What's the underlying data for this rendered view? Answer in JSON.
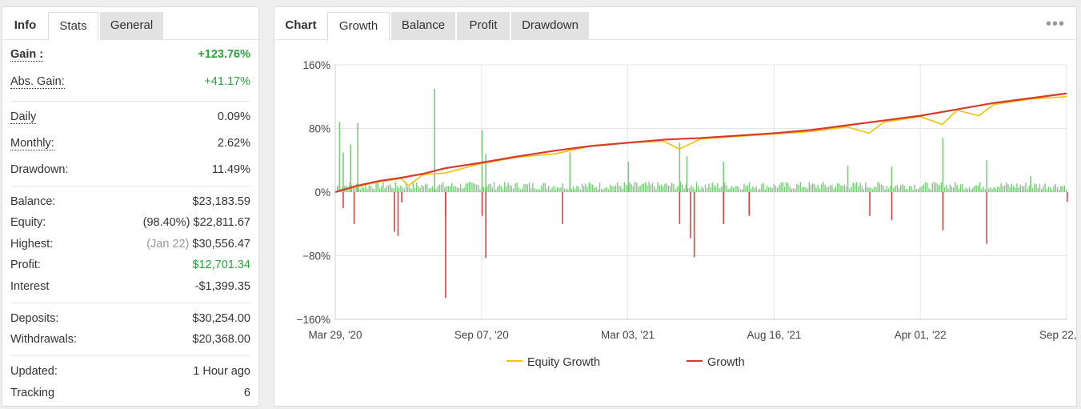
{
  "left": {
    "tabs": [
      {
        "label": "Info"
      },
      {
        "label": "Stats"
      },
      {
        "label": "General"
      }
    ],
    "stats": {
      "gain": {
        "label": "Gain :",
        "value": "+123.76%"
      },
      "abs_gain": {
        "label": "Abs. Gain:",
        "value": "+41.17%"
      },
      "daily": {
        "label": "Daily",
        "value": "0.09%"
      },
      "monthly": {
        "label": "Monthly:",
        "value": "2.62%"
      },
      "drawdown": {
        "label": "Drawdown:",
        "value": "11.49%"
      },
      "balance": {
        "label": "Balance:",
        "value": "$23,183.59"
      },
      "equity": {
        "label": "Equity:",
        "prefix": "(98.40%)",
        "value": "$22,811.67"
      },
      "highest": {
        "label": "Highest:",
        "prefix": "(Jan 22)",
        "value": "$30,556.47"
      },
      "profit": {
        "label": "Profit:",
        "value": "$12,701.34"
      },
      "interest": {
        "label": "Interest",
        "value": "-$1,399.35"
      },
      "deposits": {
        "label": "Deposits:",
        "value": "$30,254.00"
      },
      "withdrawals": {
        "label": "Withdrawals:",
        "value": "$20,368.00"
      },
      "updated": {
        "label": "Updated:",
        "value": "1 Hour ago"
      },
      "tracking": {
        "label": "Tracking",
        "value": "6"
      }
    }
  },
  "right": {
    "title": "Chart",
    "tabs": [
      {
        "label": "Growth"
      },
      {
        "label": "Balance"
      },
      {
        "label": "Profit"
      },
      {
        "label": "Drawdown"
      }
    ],
    "menu_icon": "more-dots-icon"
  },
  "colors": {
    "green": "#2aa33b",
    "equity_line": "#f2c200",
    "growth_line": "#d93a2b",
    "bar_positive": "#7ccb7c",
    "bar_negative": "#d94444"
  },
  "chart_data": {
    "type": "line",
    "x_tick_labels": [
      "Mar 29, '20",
      "Sep 07, '20",
      "Mar 03, '21",
      "Aug 16, '21",
      "Apr 01, '22",
      "Sep 22, '22"
    ],
    "y_tick_labels": [
      "160%",
      "80%",
      "0%",
      "−80%",
      "−160%"
    ],
    "ylim": [
      -160,
      160
    ],
    "grid": true,
    "legend": [
      "Equity Growth",
      "Growth"
    ],
    "legend_placement": "bottom",
    "series": [
      {
        "name": "Growth",
        "x": [
          0,
          0.03,
          0.06,
          0.09,
          0.12,
          0.15,
          0.2,
          0.25,
          0.3,
          0.35,
          0.4,
          0.45,
          0.5,
          0.55,
          0.6,
          0.65,
          0.7,
          0.75,
          0.8,
          0.85,
          0.9,
          0.95,
          1.0
        ],
        "values": [
          0,
          8,
          14,
          18,
          23,
          30,
          37,
          45,
          52,
          58,
          62,
          66,
          68,
          71,
          74,
          78,
          84,
          90,
          96,
          104,
          112,
          118,
          124
        ]
      },
      {
        "name": "Equity Growth",
        "x": [
          0,
          0.03,
          0.06,
          0.09,
          0.1,
          0.12,
          0.15,
          0.2,
          0.25,
          0.3,
          0.32,
          0.35,
          0.4,
          0.45,
          0.47,
          0.5,
          0.55,
          0.6,
          0.65,
          0.7,
          0.73,
          0.75,
          0.8,
          0.83,
          0.85,
          0.88,
          0.9,
          0.95,
          1.0
        ],
        "values": [
          0,
          7,
          13,
          17,
          8,
          22,
          24,
          36,
          44,
          48,
          52,
          58,
          62,
          64,
          54,
          67,
          70,
          73,
          76,
          82,
          74,
          88,
          95,
          85,
          103,
          96,
          110,
          117,
          120
        ]
      }
    ],
    "bars": {
      "x": [
        0.005,
        0.01,
        0.02,
        0.03,
        0.09,
        0.135,
        0.15,
        0.2,
        0.205,
        0.32,
        0.4,
        0.47,
        0.48,
        0.53,
        0.7,
        0.76,
        0.83,
        0.89,
        0.95
      ],
      "values": [
        88,
        50,
        60,
        87,
        -13,
        130,
        -30,
        78,
        48,
        50,
        38,
        62,
        45,
        38,
        33,
        32,
        68,
        40,
        20
      ],
      "negative_x": [
        0.01,
        0.025,
        0.08,
        0.085,
        0.15,
        0.2,
        0.205,
        0.31,
        0.47,
        0.485,
        0.49,
        0.53,
        0.565,
        0.73,
        0.76,
        0.83,
        0.89,
        1.0
      ],
      "negative_values": [
        -20,
        -40,
        -50,
        -55,
        -133,
        -30,
        -83,
        -40,
        -40,
        -58,
        -82,
        -40,
        -30,
        -30,
        -35,
        -48,
        -65,
        -12
      ]
    }
  }
}
